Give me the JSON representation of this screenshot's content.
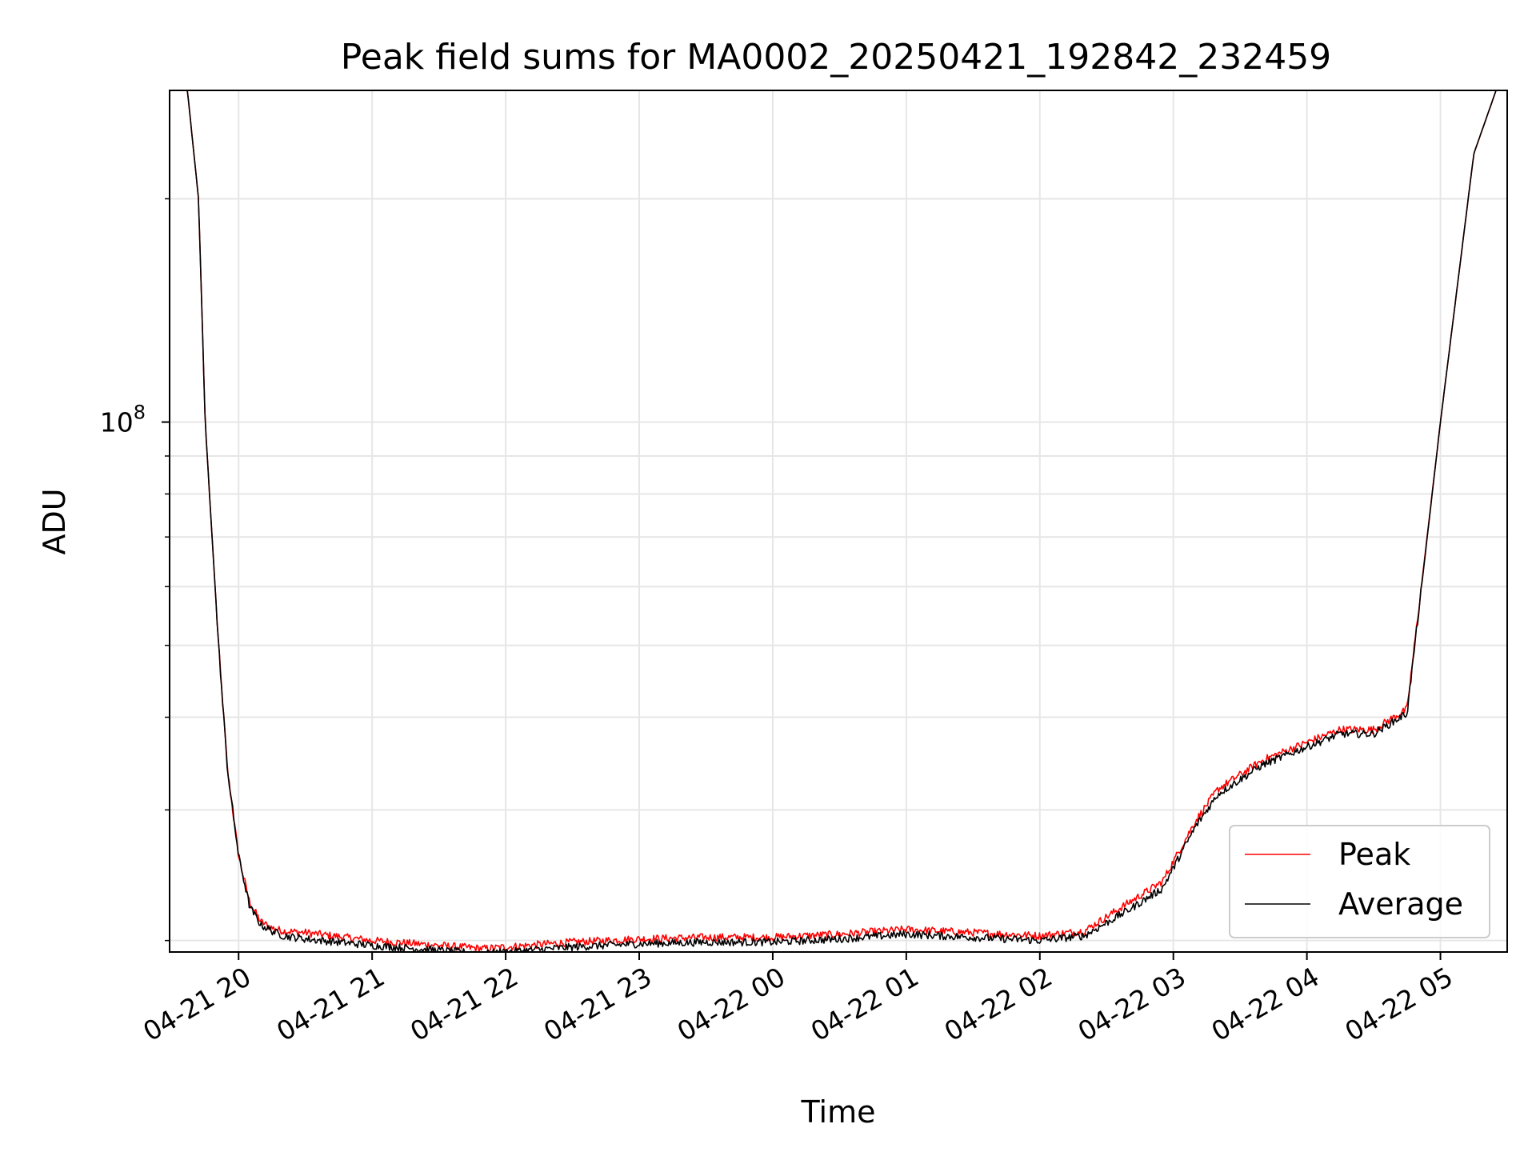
{
  "chart_data": {
    "type": "line",
    "title": "Peak field sums for MA0002_20250421_192842_232459",
    "xlabel": "Time",
    "ylabel": "ADU",
    "y_scale": "log",
    "ylim": [
      19300000,
      280000000
    ],
    "xlim": [
      "2025-04-21 19:29",
      "2025-04-22 05:30"
    ],
    "grid": true,
    "legend_position": "lower-right",
    "x_ticks": [
      "04-21 20",
      "04-21 21",
      "04-21 22",
      "04-21 23",
      "04-22 00",
      "04-22 01",
      "04-22 02",
      "04-22 03",
      "04-22 04",
      "04-22 05"
    ],
    "y_ticks": [
      {
        "value": 100000000,
        "label": "10^8"
      }
    ],
    "y_minor_ticks": [
      20000000,
      30000000,
      40000000,
      50000000,
      60000000,
      70000000,
      80000000,
      90000000,
      200000000
    ],
    "x": [
      "2025-04-21 19:29",
      "2025-04-21 19:37",
      "2025-04-21 19:42",
      "2025-04-21 19:45",
      "2025-04-21 19:51",
      "2025-04-21 19:55",
      "2025-04-21 20:00",
      "2025-04-21 20:05",
      "2025-04-21 20:10",
      "2025-04-21 20:15",
      "2025-04-21 20:20",
      "2025-04-21 20:30",
      "2025-04-21 21:00",
      "2025-04-21 21:30",
      "2025-04-21 21:50",
      "2025-04-21 22:00",
      "2025-04-21 22:30",
      "2025-04-21 23:00",
      "2025-04-21 23:30",
      "2025-04-22 00:00",
      "2025-04-22 00:30",
      "2025-04-22 01:00",
      "2025-04-22 01:30",
      "2025-04-22 02:00",
      "2025-04-22 02:20",
      "2025-04-22 02:40",
      "2025-04-22 02:55",
      "2025-04-22 03:10",
      "2025-04-22 03:20",
      "2025-04-22 03:40",
      "2025-04-22 04:00",
      "2025-04-22 04:15",
      "2025-04-22 04:30",
      "2025-04-22 04:45",
      "2025-04-22 05:00",
      "2025-04-22 05:15",
      "2025-04-22 05:25"
    ],
    "series": [
      {
        "name": "Peak",
        "color": "#ff0000",
        "values": [
          280000000,
          280000000,
          200000000,
          100000000,
          50000000,
          34000000,
          26000000,
          22500000,
          21200000,
          20800000,
          20600000,
          20500000,
          20000000,
          19700000,
          19500000,
          19600000,
          19900000,
          20100000,
          20200000,
          20200000,
          20400000,
          20700000,
          20500000,
          20300000,
          20600000,
          22500000,
          24000000,
          29000000,
          32000000,
          35000000,
          37000000,
          38500000,
          38500000,
          41000000,
          100000000,
          230000000,
          280000000
        ]
      },
      {
        "name": "Average",
        "color": "#000000",
        "values": [
          280000000,
          280000000,
          200000000,
          100000000,
          50000000,
          34000000,
          26000000,
          22200000,
          21000000,
          20600000,
          20300000,
          20100000,
          19700000,
          19400000,
          19200000,
          19300000,
          19600000,
          19800000,
          19900000,
          19900000,
          20100000,
          20400000,
          20200000,
          20000000,
          20300000,
          22000000,
          23500000,
          28500000,
          31500000,
          34500000,
          36500000,
          38000000,
          38000000,
          40500000,
          100000000,
          230000000,
          280000000
        ]
      }
    ]
  }
}
